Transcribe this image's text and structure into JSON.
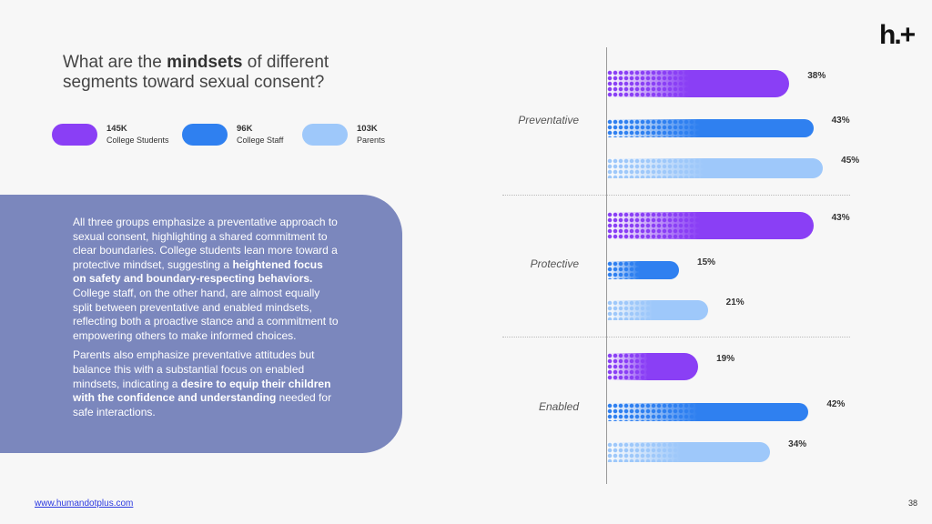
{
  "title": {
    "pre": "What are the ",
    "bold": "mindsets",
    "post": " of different segments toward sexual consent?"
  },
  "logo": "h.+",
  "colors": {
    "students": "#8a3ff5",
    "staff": "#2f80f0",
    "parents": "#9ec8fa",
    "panel": "#7b87bd"
  },
  "legend": [
    {
      "count": "145K",
      "label": "College Students",
      "key": "students"
    },
    {
      "count": "96K",
      "label": "College Staff",
      "key": "staff"
    },
    {
      "count": "103K",
      "label": "Parents",
      "key": "parents"
    }
  ],
  "panel": {
    "p1": [
      "All three groups emphasize a preventative approach to sexual consent, highlighting a shared commitment to clear boundaries. College students lean more toward a protective mindset, suggesting a ",
      "heightened focus on safety and boundary-respecting behaviors.",
      " College staff, on the other hand, are almost equally split between preventative and enabled mindsets, reflecting both a proactive stance and a commitment to empowering others to make informed choices."
    ],
    "p2": [
      "Parents also emphasize preventative attitudes but balance this with a substantial focus on enabled mindsets, indicating a ",
      "desire to equip their children with the confidence and understanding",
      " needed for safe interactions."
    ]
  },
  "chart_data": {
    "type": "bar",
    "orientation": "horizontal",
    "categories": [
      "Preventative",
      "Protective",
      "Enabled"
    ],
    "series": [
      {
        "name": "College Students",
        "values": [
          38,
          43,
          19
        ]
      },
      {
        "name": "College Staff",
        "values": [
          43,
          15,
          42
        ]
      },
      {
        "name": "Parents",
        "values": [
          45,
          21,
          34
        ]
      }
    ],
    "unit": "%",
    "xlim": [
      0,
      50
    ]
  },
  "footer": {
    "link": "www.humandotplus.com",
    "page": "38"
  }
}
